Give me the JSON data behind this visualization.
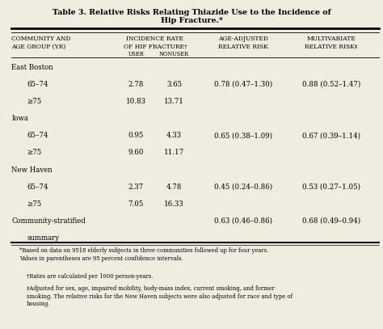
{
  "title_line1": "Table 3. Relative Risks Relating Thiazide Use to the Incidence of",
  "title_line2": "Hip Fracture.*",
  "bg_color": "#f0ece0",
  "rows": [
    {
      "label": "East Boston",
      "indent": false,
      "user": "",
      "nonuser": "",
      "age_adj": "",
      "multivar": ""
    },
    {
      "label": "65–74",
      "indent": true,
      "user": "2.78",
      "nonuser": "3.65",
      "age_adj": "0.78 (0.47–1.30)",
      "multivar": "0.88 (0.52–1.47)"
    },
    {
      "label": "≥75",
      "indent": true,
      "user": "10.83",
      "nonuser": "13.71",
      "age_adj": "",
      "multivar": ""
    },
    {
      "label": "Iowa",
      "indent": false,
      "user": "",
      "nonuser": "",
      "age_adj": "",
      "multivar": ""
    },
    {
      "label": "65–74",
      "indent": true,
      "user": "0.95",
      "nonuser": "4.33",
      "age_adj": "0.65 (0.38–1.09)",
      "multivar": "0.67 (0.39–1.14)"
    },
    {
      "label": "≥75",
      "indent": true,
      "user": "9.60",
      "nonuser": "11.17",
      "age_adj": "",
      "multivar": ""
    },
    {
      "label": "New Haven",
      "indent": false,
      "user": "",
      "nonuser": "",
      "age_adj": "",
      "multivar": ""
    },
    {
      "label": "65–74",
      "indent": true,
      "user": "2.37",
      "nonuser": "4.78",
      "age_adj": "0.45 (0.24–0.86)",
      "multivar": "0.53 (0.27–1.05)"
    },
    {
      "label": "≥75",
      "indent": true,
      "user": "7.05",
      "nonuser": "16.33",
      "age_adj": "",
      "multivar": ""
    },
    {
      "label": "Community-stratified",
      "indent": false,
      "user": "",
      "nonuser": "",
      "age_adj": "0.63 (0.46–0.86)",
      "multivar": "0.68 (0.49–0.94)"
    },
    {
      "label": "summary",
      "indent": true,
      "user": "",
      "nonuser": "",
      "age_adj": "",
      "multivar": ""
    }
  ],
  "footnote1": "*Based on data on 9518 elderly subjects in three communities followed up for four years.\nValues in parentheses are 95 percent confidence intervals.",
  "footnote2": "†Rates are calculated per 1000 person-years.",
  "footnote3": "‡Adjusted for sex, age, impaired mobility, body-mass index, current smoking, and former\nsmoking. The relative risks for the New Haven subjects were also adjusted for race and type of\nhousing."
}
